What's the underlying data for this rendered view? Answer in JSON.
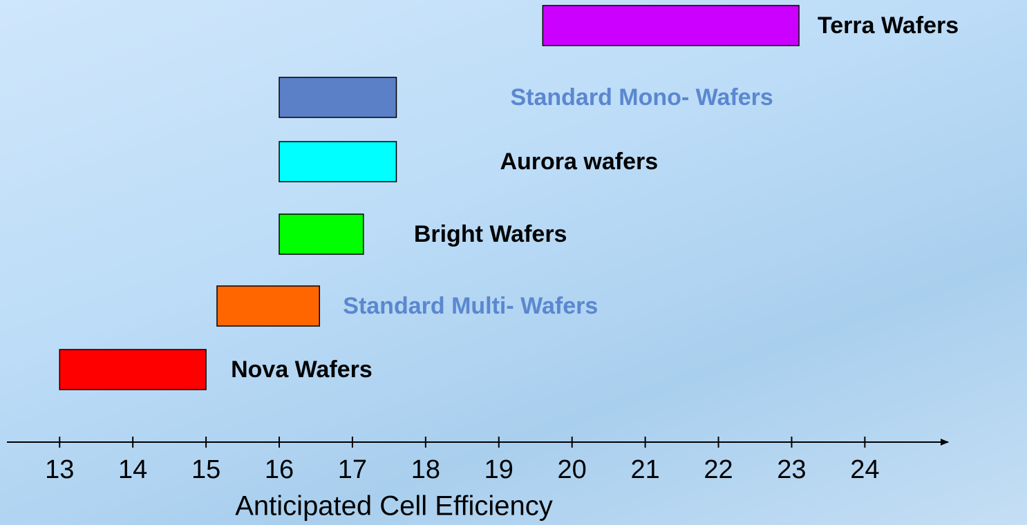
{
  "chart_data": {
    "type": "range_bar",
    "x_label": "Anticipated Cell Efficiency",
    "xlim": [
      12.28,
      25.12
    ],
    "xticks": [
      13,
      14,
      15,
      16,
      17,
      18,
      19,
      20,
      21,
      22,
      23,
      24
    ],
    "bars": [
      {
        "name": "Terra Wafers",
        "start": 19.6,
        "end": 23.1,
        "color": "#cc00ff",
        "label_color": "#000000"
      },
      {
        "name": "Standard Mono- Wafers",
        "start": 16,
        "end": 17.6,
        "color": "#5b80c8",
        "label_color": "#5b87cf"
      },
      {
        "name": "Aurora wafers",
        "start": 16,
        "end": 17.6,
        "color": "#00ffff",
        "label_color": "#000000"
      },
      {
        "name": "Bright Wafers",
        "start": 16,
        "end": 17.15,
        "color": "#00ff00",
        "label_color": "#000000"
      },
      {
        "name": "Standard Multi- Wafers",
        "start": 15.15,
        "end": 16.55,
        "color": "#ff6600",
        "label_color": "#5b87cf"
      },
      {
        "name": "Nova Wafers",
        "start": 13,
        "end": 15,
        "color": "#ff0000",
        "label_color": "#000000"
      }
    ]
  }
}
